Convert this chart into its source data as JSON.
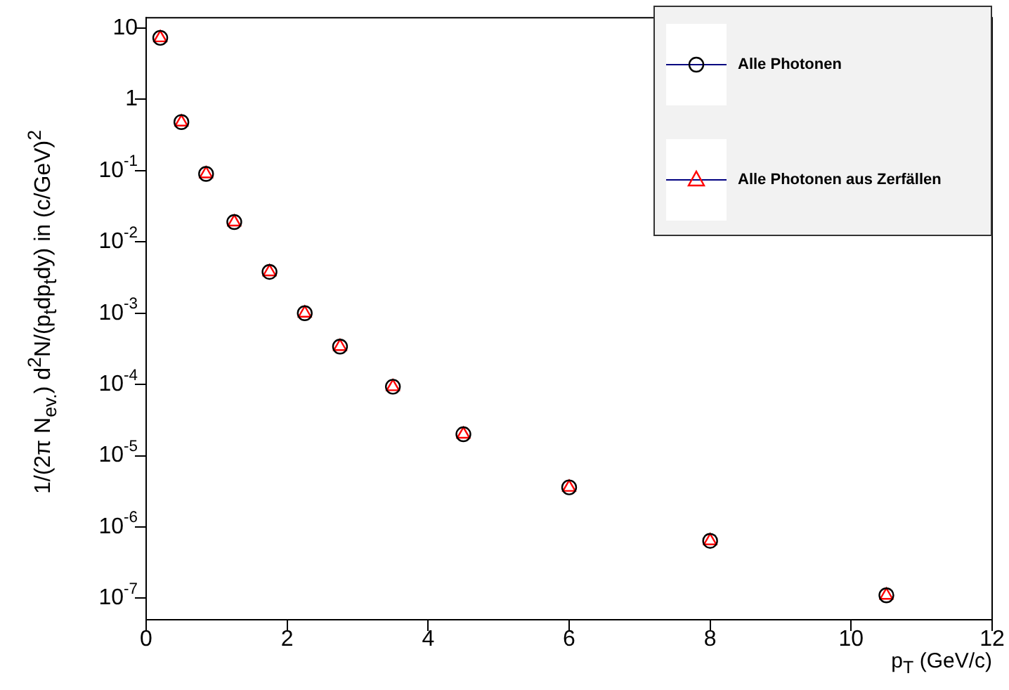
{
  "chart_data": {
    "type": "scatter",
    "xlabel": "p$_{T}$ (GeV/c)",
    "ylabel": "1/(2π N$_{ev.}$) d$^{2}$N/(p$_{t}$dp$_{t}$dy) in (c/GeV)$^{2}$",
    "x": [
      0.2,
      0.5,
      0.85,
      1.25,
      1.75,
      2.25,
      2.75,
      3.5,
      4.5,
      6,
      8,
      10.5
    ],
    "series": [
      {
        "name": "Alle Photonen",
        "color": "#000000",
        "marker": "circle",
        "values": [
          7.3,
          0.48,
          0.09,
          0.019,
          0.0038,
          0.001,
          0.00034,
          9.3e-05,
          2e-05,
          3.6e-06,
          6.4e-07,
          1.1e-07
        ]
      },
      {
        "name": "Alle Photonen aus Zerfällen",
        "color": "#ff0000",
        "marker": "triangle",
        "values": [
          7.3,
          0.48,
          0.09,
          0.019,
          0.0038,
          0.001,
          0.00034,
          9.3e-05,
          2e-05,
          3.6e-06,
          6.4e-07,
          1.1e-07
        ]
      }
    ],
    "xlim": [
      0,
      12
    ],
    "xticks": [
      0,
      2,
      4,
      6,
      8,
      10,
      12
    ],
    "ylim": [
      5e-08,
      14
    ],
    "log": true,
    "yticks": [
      {
        "value": 10,
        "label": "10"
      },
      {
        "value": 1,
        "label": "1"
      },
      {
        "value": 0.1,
        "label": "10$^{-1}$"
      },
      {
        "value": 0.01,
        "label": "10$^{-2}$"
      },
      {
        "value": 0.001,
        "label": "10$^{-3}$"
      },
      {
        "value": 0.0001,
        "label": "10$^{-4}$"
      },
      {
        "value": 1e-05,
        "label": "10$^{-5}$"
      },
      {
        "value": 1e-06,
        "label": "10$^{-6}$"
      },
      {
        "value": 1e-07,
        "label": "10$^{-7}$"
      }
    ],
    "grid": false,
    "legend": "top right"
  }
}
